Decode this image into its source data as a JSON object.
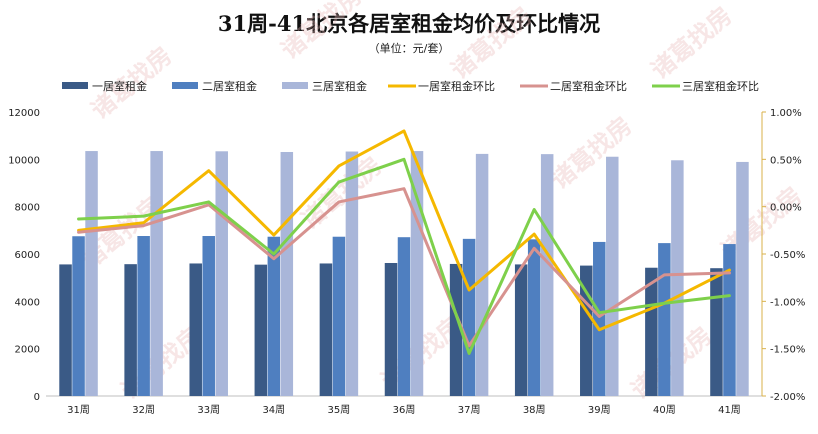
{
  "chart_data": {
    "type": "bar",
    "title": "31周-41北京各居室租金均价及环比情况",
    "subtitle": "（单位：元/套）",
    "categories": [
      "31周",
      "32周",
      "33周",
      "34周",
      "35周",
      "36周",
      "37周",
      "38周",
      "39周",
      "40周",
      "41周"
    ],
    "series": [
      {
        "name": "一居室租金",
        "kind": "bar",
        "axis": "left",
        "color": "#3a5a86",
        "values": [
          5560,
          5570,
          5600,
          5550,
          5600,
          5620,
          5580,
          5560,
          5510,
          5420,
          5400
        ]
      },
      {
        "name": "二居室租金",
        "kind": "bar",
        "axis": "left",
        "color": "#4f7fc0",
        "values": [
          6750,
          6760,
          6760,
          6730,
          6730,
          6710,
          6640,
          6620,
          6510,
          6460,
          6420
        ]
      },
      {
        "name": "三居室租金",
        "kind": "bar",
        "axis": "left",
        "color": "#a9b6d9",
        "values": [
          10350,
          10350,
          10340,
          10310,
          10330,
          10350,
          10230,
          10220,
          10110,
          9960,
          9890
        ]
      },
      {
        "name": "一居室租金环比",
        "kind": "line",
        "axis": "right",
        "color": "#f5b800",
        "values": [
          -0.25,
          -0.17,
          0.38,
          -0.3,
          0.43,
          0.8,
          -0.88,
          -0.29,
          -1.3,
          -1.02,
          -0.67
        ]
      },
      {
        "name": "二居室租金环比",
        "kind": "line",
        "axis": "right",
        "color": "#d7928f",
        "values": [
          -0.27,
          -0.2,
          0.02,
          -0.55,
          0.05,
          0.19,
          -1.47,
          -0.44,
          -1.16,
          -0.72,
          -0.7
        ]
      },
      {
        "name": "三居室租金环比",
        "kind": "line",
        "axis": "right",
        "color": "#7ed04b",
        "values": [
          -0.13,
          -0.1,
          0.05,
          -0.5,
          0.26,
          0.5,
          -1.55,
          -0.03,
          -1.12,
          -1.02,
          -0.94
        ]
      }
    ],
    "ylim_left": [
      0,
      12000
    ],
    "yticks_left": [
      "0",
      "2000",
      "4000",
      "6000",
      "8000",
      "10000",
      "12000"
    ],
    "ylim_right": [
      -2.0,
      1.0
    ],
    "yticks_right": [
      "-2.00%",
      "-1.50%",
      "-1.00%",
      "-0.50%",
      "0.00%",
      "0.50%",
      "1.00%"
    ],
    "grid": false,
    "legend_position": "top"
  },
  "watermark": "诸葛找房"
}
